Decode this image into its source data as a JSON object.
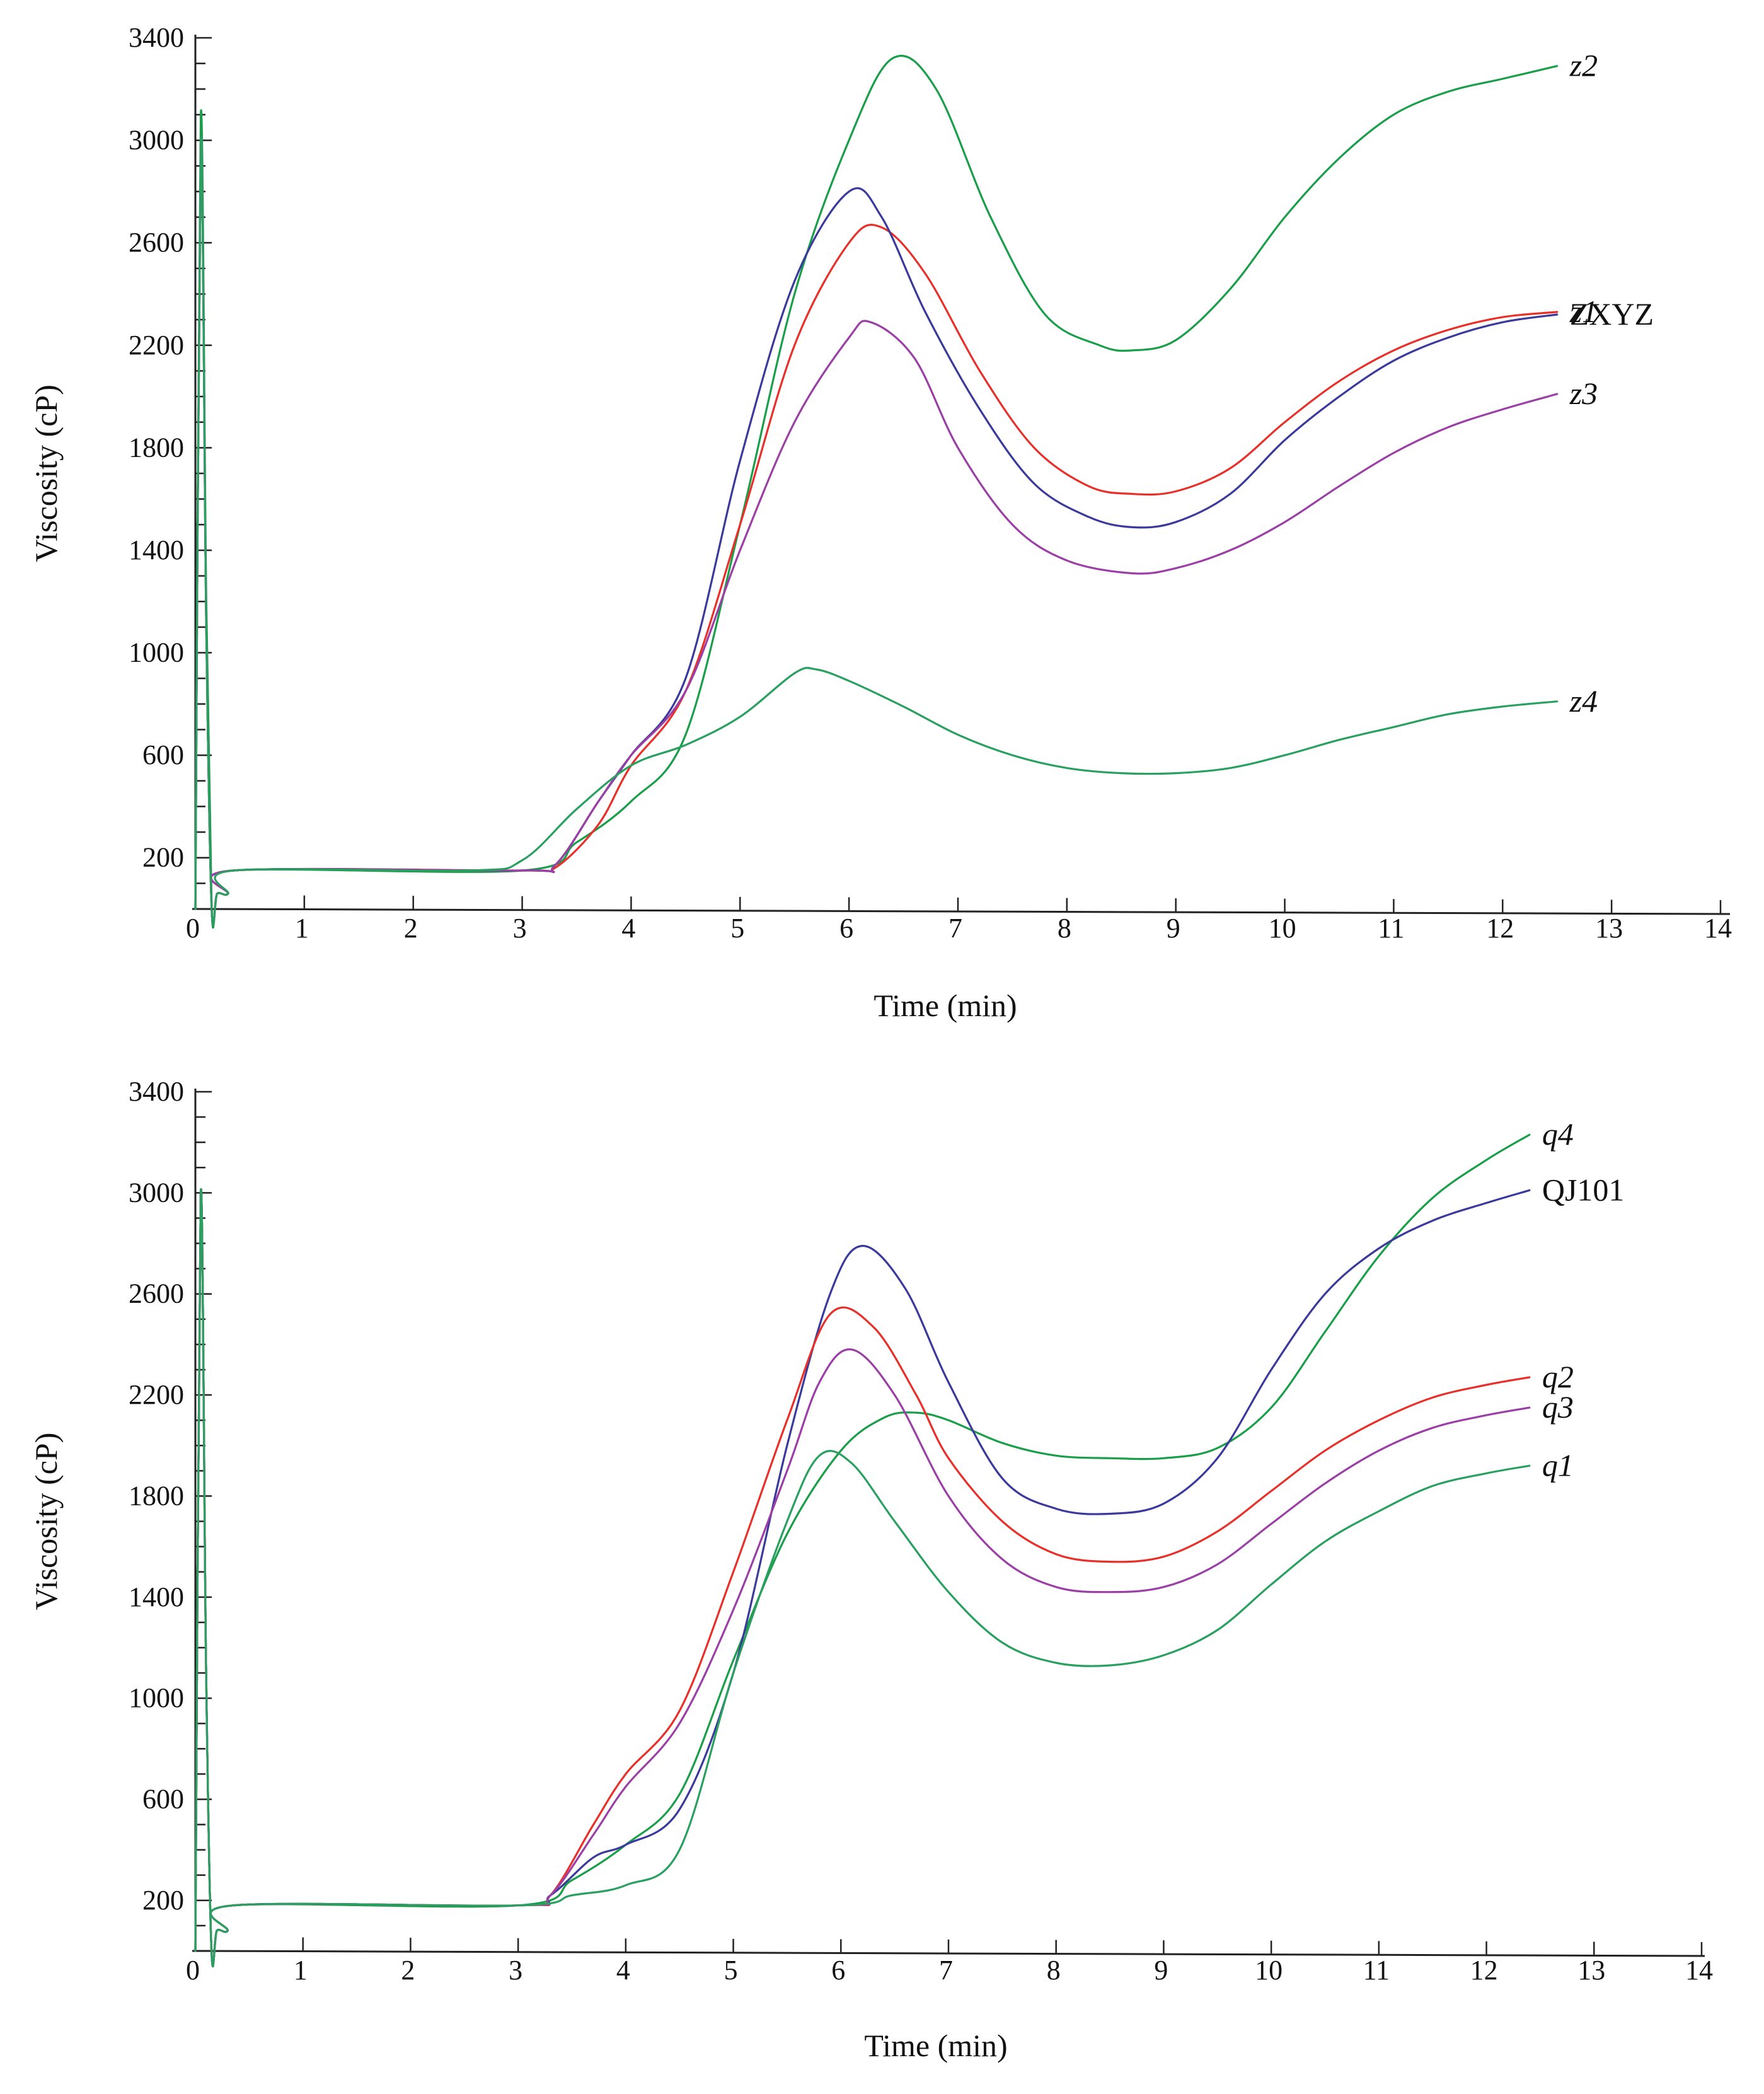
{
  "chart_data": [
    {
      "type": "line",
      "title": "",
      "xlabel": "Time (min)",
      "ylabel": "Viscosity (cP)",
      "xlim": [
        0,
        14
      ],
      "ylim": [
        0,
        3400
      ],
      "xticks": [
        "0",
        "1",
        "2",
        "3",
        "4",
        "5",
        "6",
        "7",
        "8",
        "9",
        "10",
        "11",
        "12",
        "13",
        "14"
      ],
      "yticks": [
        "200",
        "600",
        "1000",
        "1400",
        "1800",
        "2200",
        "2600",
        "3000",
        "3400"
      ],
      "grid": false,
      "legend": "inline labels at right end of each line",
      "series": [
        {
          "name": "z2",
          "italic": true,
          "color": "#1a9e4a",
          "x": [
            0,
            0.05,
            0.1,
            0.15,
            0.2,
            0.3,
            0.35,
            3,
            3.5,
            4,
            4.5,
            5,
            5.5,
            6,
            6.4,
            6.8,
            7.3,
            7.8,
            8.3,
            8.6,
            9,
            9.5,
            10,
            10.5,
            11,
            11.5,
            12,
            12.5
          ],
          "y": [
            0,
            3100,
            1200,
            0,
            60,
            60,
            150,
            150,
            260,
            420,
            680,
            1500,
            2400,
            3000,
            3320,
            3200,
            2700,
            2320,
            2200,
            2180,
            2220,
            2420,
            2700,
            2930,
            3100,
            3190,
            3240,
            3290
          ]
        },
        {
          "name": "z1",
          "italic": true,
          "color": "#e8302a",
          "x": [
            0,
            0.05,
            0.1,
            0.15,
            0.2,
            0.3,
            0.35,
            3,
            3.3,
            3.7,
            4,
            4.5,
            5,
            5.5,
            6,
            6.3,
            6.7,
            7.2,
            7.7,
            8.2,
            8.6,
            9,
            9.5,
            10,
            10.5,
            11,
            11.5,
            12,
            12.5
          ],
          "y": [
            0,
            3000,
            1100,
            0,
            60,
            60,
            150,
            150,
            160,
            330,
            560,
            850,
            1500,
            2200,
            2600,
            2660,
            2480,
            2100,
            1800,
            1650,
            1620,
            1630,
            1720,
            1900,
            2060,
            2180,
            2260,
            2310,
            2330
          ]
        },
        {
          "name": "ZXYZ",
          "italic": false,
          "color": "#3a3a9c",
          "x": [
            0,
            0.05,
            0.1,
            0.15,
            0.2,
            0.3,
            0.35,
            3,
            3.3,
            3.7,
            4,
            4.5,
            5,
            5.5,
            6,
            6.3,
            6.7,
            7.2,
            7.7,
            8.2,
            8.6,
            9,
            9.5,
            10,
            10.5,
            11,
            11.5,
            12,
            12.5
          ],
          "y": [
            0,
            3000,
            1100,
            0,
            60,
            60,
            150,
            150,
            170,
            420,
            600,
            900,
            1750,
            2450,
            2800,
            2700,
            2330,
            1950,
            1660,
            1530,
            1490,
            1510,
            1620,
            1830,
            2000,
            2140,
            2230,
            2290,
            2320
          ]
        },
        {
          "name": "z3",
          "italic": true,
          "color": "#9b3fa6",
          "x": [
            0,
            0.05,
            0.1,
            0.15,
            0.2,
            0.3,
            0.35,
            3,
            3.3,
            3.7,
            4,
            4.5,
            5,
            5.5,
            6,
            6.2,
            6.6,
            7,
            7.5,
            8,
            8.6,
            9,
            9.5,
            10,
            10.5,
            11,
            11.5,
            12,
            12.5
          ],
          "y": [
            0,
            3000,
            1100,
            0,
            60,
            60,
            150,
            150,
            170,
            420,
            600,
            850,
            1400,
            1900,
            2230,
            2290,
            2150,
            1800,
            1500,
            1360,
            1310,
            1330,
            1400,
            1510,
            1650,
            1780,
            1880,
            1950,
            2010
          ]
        },
        {
          "name": "z4",
          "italic": true,
          "color": "#2aa060",
          "x": [
            0,
            0.05,
            0.1,
            0.15,
            0.2,
            0.3,
            0.35,
            2.5,
            3,
            3.5,
            4,
            4.5,
            5,
            5.5,
            5.7,
            6,
            6.5,
            7,
            7.5,
            8,
            8.5,
            9,
            9.5,
            10,
            10.5,
            11,
            11.5,
            12,
            12.5
          ],
          "y": [
            0,
            3000,
            1100,
            0,
            60,
            60,
            150,
            150,
            190,
            390,
            560,
            640,
            750,
            920,
            935,
            890,
            790,
            680,
            600,
            550,
            530,
            530,
            550,
            600,
            660,
            710,
            760,
            790,
            810
          ]
        }
      ]
    },
    {
      "type": "line",
      "title": "",
      "xlabel": "Time (min)",
      "ylabel": "Viscosity (cP)",
      "xlim": [
        0,
        14
      ],
      "ylim": [
        0,
        3400
      ],
      "xticks": [
        "0",
        "1",
        "2",
        "3",
        "4",
        "5",
        "6",
        "7",
        "8",
        "9",
        "10",
        "11",
        "12",
        "13",
        "14"
      ],
      "yticks": [
        "200",
        "600",
        "1000",
        "1400",
        "1800",
        "2200",
        "2600",
        "3000",
        "3400"
      ],
      "grid": false,
      "legend": "inline labels at right end of each line",
      "series": [
        {
          "name": "q4",
          "italic": true,
          "color": "#1a9e4a",
          "x": [
            0,
            0.05,
            0.1,
            0.15,
            0.2,
            0.3,
            0.35,
            3,
            3.5,
            4,
            4.5,
            5,
            5.5,
            6,
            6.4,
            6.7,
            7,
            7.5,
            8,
            8.5,
            9,
            9.5,
            10,
            10.5,
            11,
            11.5,
            12,
            12.4
          ],
          "y": [
            0,
            3000,
            1100,
            0,
            80,
            80,
            180,
            180,
            280,
            420,
            620,
            1150,
            1650,
            1980,
            2110,
            2130,
            2100,
            2010,
            1960,
            1950,
            1950,
            1990,
            2150,
            2450,
            2750,
            2980,
            3130,
            3230
          ]
        },
        {
          "name": "QJ101",
          "italic": false,
          "color": "#3a3a9c",
          "x": [
            0,
            0.05,
            0.1,
            0.15,
            0.2,
            0.3,
            0.35,
            3,
            3.3,
            3.7,
            4,
            4.5,
            5,
            5.5,
            5.9,
            6.2,
            6.6,
            7,
            7.5,
            8,
            8.5,
            9,
            9.5,
            10,
            10.5,
            11,
            11.5,
            12,
            12.4
          ],
          "y": [
            0,
            3000,
            1100,
            0,
            80,
            80,
            180,
            180,
            220,
            370,
            420,
            560,
            1100,
            2000,
            2600,
            2790,
            2620,
            2250,
            1870,
            1750,
            1730,
            1770,
            1950,
            2300,
            2600,
            2780,
            2890,
            2960,
            3010
          ]
        },
        {
          "name": "q2",
          "italic": true,
          "color": "#e8302a",
          "x": [
            0,
            0.05,
            0.1,
            0.15,
            0.2,
            0.3,
            0.35,
            3,
            3.3,
            3.7,
            4,
            4.5,
            5,
            5.5,
            5.9,
            6.3,
            6.7,
            7,
            7.5,
            8,
            8.5,
            9,
            9.5,
            10,
            10.5,
            11,
            11.5,
            12,
            12.4
          ],
          "y": [
            0,
            3000,
            1100,
            0,
            80,
            80,
            180,
            180,
            220,
            500,
            700,
            950,
            1500,
            2100,
            2520,
            2470,
            2200,
            1950,
            1700,
            1570,
            1540,
            1560,
            1660,
            1820,
            1980,
            2100,
            2190,
            2240,
            2270
          ]
        },
        {
          "name": "q3",
          "italic": true,
          "color": "#9b3fa6",
          "x": [
            0,
            0.05,
            0.1,
            0.15,
            0.2,
            0.3,
            0.35,
            3,
            3.3,
            3.7,
            4,
            4.5,
            5,
            5.5,
            5.8,
            6.1,
            6.5,
            7,
            7.5,
            8,
            8.5,
            9,
            9.5,
            10,
            10.5,
            11,
            11.5,
            12,
            12.4
          ],
          "y": [
            0,
            3000,
            1100,
            0,
            80,
            80,
            180,
            180,
            220,
            460,
            650,
            900,
            1350,
            1900,
            2250,
            2380,
            2200,
            1800,
            1550,
            1440,
            1420,
            1440,
            1530,
            1690,
            1850,
            1980,
            2070,
            2120,
            2150
          ]
        },
        {
          "name": "q1",
          "italic": true,
          "color": "#2aa060",
          "x": [
            0,
            0.05,
            0.1,
            0.15,
            0.2,
            0.3,
            0.35,
            3,
            3.5,
            4,
            4.5,
            5,
            5.5,
            5.8,
            6.1,
            6.5,
            7,
            7.5,
            8,
            8.5,
            9,
            9.5,
            10,
            10.5,
            11,
            11.5,
            12,
            12.4
          ],
          "y": [
            0,
            3000,
            1100,
            0,
            80,
            80,
            180,
            180,
            220,
            260,
            400,
            1100,
            1700,
            1960,
            1930,
            1700,
            1420,
            1220,
            1140,
            1130,
            1170,
            1270,
            1450,
            1620,
            1740,
            1840,
            1890,
            1920
          ]
        }
      ]
    }
  ]
}
